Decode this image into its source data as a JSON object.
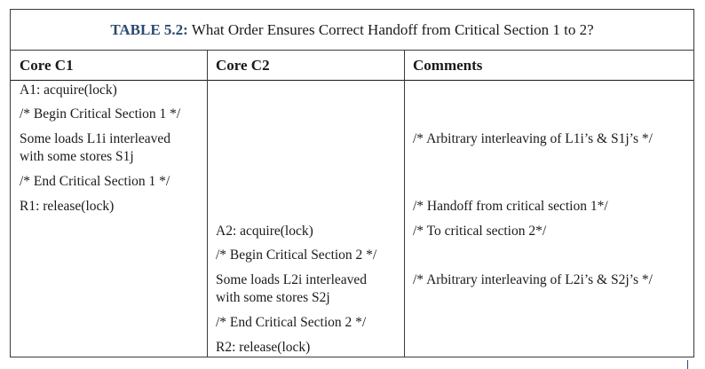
{
  "caption": {
    "label": "TABLE 5.2:",
    "text": " What Order Ensures Correct Handoff from Critical Section 1 to 2?"
  },
  "headers": {
    "core_c1": "Core C1",
    "core_c2": "Core C2",
    "comments": "Comments"
  },
  "core_c1": {
    "r1": "A1: acquire(lock)",
    "r2": "/* Begin Critical Section 1 */",
    "r3a": "Some loads L1i interleaved",
    "r3b": "with some stores S1j",
    "r4": "/* End Critical Section 1 */",
    "r5": "R1: release(lock)"
  },
  "core_c2": {
    "r6": "A2: acquire(lock)",
    "r7": "/* Begin Critical Section 2 */",
    "r8a": "Some loads L2i interleaved",
    "r8b": "with some stores S2j",
    "r9": "/* End Critical Section 2 */",
    "r10": "R2: release(lock)"
  },
  "comments": {
    "r3": "/* Arbitrary interleaving of L1i’s & S1j’s */",
    "r5": "/* Handoff from critical section 1*/",
    "r6": "/* To critical section 2*/",
    "r8": "/* Arbitrary interleaving of L2i’s & S2j’s */"
  }
}
